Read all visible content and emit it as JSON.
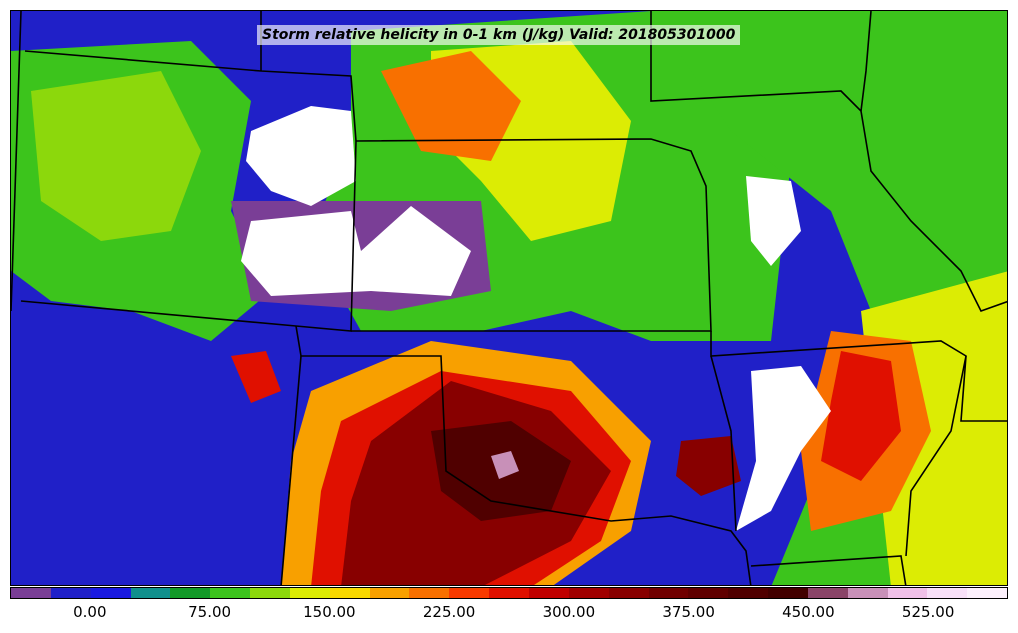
{
  "title": "Storm relative helicity in 0-1 km (J/kg) Valid: 201805301000",
  "colorbar": {
    "colors": [
      "#7a3e96",
      "#2020c8",
      "#1a1ae0",
      "#10908c",
      "#129a28",
      "#3cc41c",
      "#8cd80c",
      "#dcec04",
      "#f8d800",
      "#f8a000",
      "#f87000",
      "#f83a00",
      "#e01000",
      "#c00000",
      "#a00000",
      "#880000",
      "#700000",
      "#600000",
      "#500000",
      "#420000",
      "#8a4468",
      "#c890b8",
      "#f0c0e8",
      "#f8e0f8",
      "#fcf0fc"
    ],
    "tick_labels": [
      "0.00",
      "75.00",
      "150.00",
      "225.00",
      "300.00",
      "375.00",
      "450.00",
      "525.00"
    ]
  },
  "map": {
    "background_color": "#2020c8",
    "border_color": "#000000"
  }
}
